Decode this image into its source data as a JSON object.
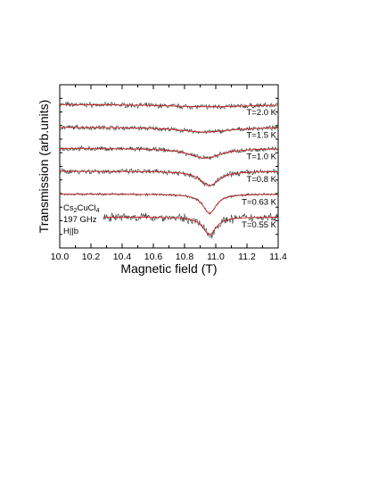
{
  "chart_data": {
    "type": "line",
    "xlabel": "Magnetic field (T)",
    "ylabel": "Transmission (arb.units)",
    "xlim": [
      10.0,
      11.4
    ],
    "x_ticks": [
      "10.0",
      "10.2",
      "10.4",
      "10.6",
      "10.8",
      "11.0",
      "11.2",
      "11.4"
    ],
    "annotation": {
      "compound": "Cs",
      "sub1": "2",
      "mid": "CuCl",
      "sub2": "4",
      "frequency": "197 GHz",
      "orientation": "H||b"
    },
    "colors": {
      "data": "#333333",
      "fit": "#cc2222"
    },
    "series": [
      {
        "name": "T=2.0 K",
        "x_start": 10.0,
        "x_end": 11.4,
        "offset": 0.88,
        "amplitude": 0.015,
        "center": 10.95,
        "width": 0.35,
        "noise": 0.012
      },
      {
        "name": "T=1.5 K",
        "x_start": 10.0,
        "x_end": 11.4,
        "offset": 0.74,
        "amplitude": 0.03,
        "center": 10.93,
        "width": 0.2,
        "noise": 0.011
      },
      {
        "name": "T=1.0 K",
        "x_start": 10.0,
        "x_end": 11.4,
        "offset": 0.61,
        "amplitude": 0.06,
        "center": 10.93,
        "width": 0.12,
        "noise": 0.011
      },
      {
        "name": "T=0.8 K",
        "x_start": 10.0,
        "x_end": 11.4,
        "offset": 0.47,
        "amplitude": 0.09,
        "center": 10.96,
        "width": 0.07,
        "noise": 0.013
      },
      {
        "name": "T=0.63 K",
        "x_start": 10.0,
        "x_end": 11.4,
        "offset": 0.33,
        "amplitude": 0.12,
        "center": 10.96,
        "width": 0.05,
        "noise": 0.006
      },
      {
        "name": "T=0.55 K",
        "x_start": 10.28,
        "x_end": 11.4,
        "offset": 0.19,
        "amplitude": 0.11,
        "center": 10.96,
        "width": 0.05,
        "noise": 0.022
      }
    ]
  }
}
